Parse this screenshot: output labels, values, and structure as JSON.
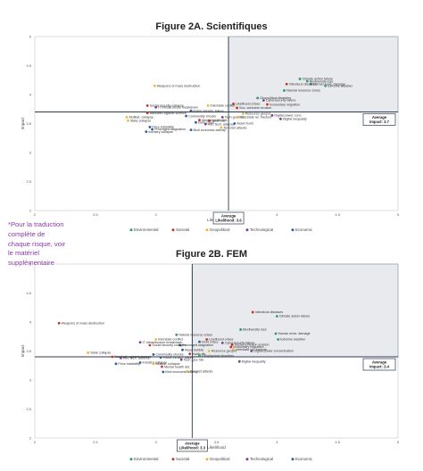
{
  "side_note": "*Pour la traduction complète de chaque risque, voir le matériel supplémentaire",
  "colors": {
    "Environmental": "#2e9a6a",
    "Societal": "#c0392b",
    "Geopolitical": "#f0b43a",
    "Technological": "#7a3f8f",
    "Economic": "#2b5fa0"
  },
  "chart_data": [
    {
      "type": "scatter",
      "title": "Figure 2A. Scientifiques",
      "xlabel": "Likelihood",
      "ylabel": "Impact",
      "xlim": [
        2,
        5
      ],
      "ylim": [
        2,
        5
      ],
      "x_ticks": [
        "2",
        "2.5",
        "3",
        "3.5",
        "4",
        "4.5",
        "5"
      ],
      "y_ticks": [
        "2",
        "2.5",
        "3",
        "3.5",
        "4",
        "4.5",
        "5"
      ],
      "grid": false,
      "legend_position": "bottom",
      "legend": [
        "Environmental",
        "Societal",
        "Geopolitical",
        "Technological",
        "Economic"
      ],
      "average": {
        "likelihood": 3.6,
        "impact": 3.7,
        "likelihood_label": "Average\nLikelihood: 3.6",
        "impact_label": "Average\nImpact: 3.7"
      },
      "points": [
        {
          "label": "Climate action failure",
          "x": 4.19,
          "y": 4.27,
          "category": "Environmental"
        },
        {
          "label": "Biodiversity loss",
          "x": 4.25,
          "y": 4.23,
          "category": "Environmental"
        },
        {
          "label": "Human envir. damage",
          "x": 4.28,
          "y": 4.18,
          "category": "Environmental"
        },
        {
          "label": "Extreme weather",
          "x": 4.4,
          "y": 4.15,
          "category": "Environmental"
        },
        {
          "label": "Infectious diseases",
          "x": 4.08,
          "y": 4.18,
          "category": "Societal"
        },
        {
          "label": "Natural resource crises",
          "x": 4.06,
          "y": 4.07,
          "category": "Environmental"
        },
        {
          "label": "Geopolitical disasters",
          "x": 3.84,
          "y": 3.94,
          "category": "Environmental"
        },
        {
          "label": "Cybersecurity failure",
          "x": 3.89,
          "y": 3.9,
          "category": "Technological"
        },
        {
          "label": "Involuntary migration",
          "x": 3.92,
          "y": 3.83,
          "category": "Societal"
        },
        {
          "label": "Likelihood crises",
          "x": 3.64,
          "y": 3.84,
          "category": "Societal"
        },
        {
          "label": "Soc. cohesion erosion",
          "x": 3.67,
          "y": 3.77,
          "category": "Societal"
        },
        {
          "label": "Interstate conflict",
          "x": 3.43,
          "y": 3.81,
          "category": "Geopolitical"
        },
        {
          "label": "Weapons of mass destruction",
          "x": 2.99,
          "y": 4.15,
          "category": "Geopolitical"
        },
        {
          "label": "Social security collapse",
          "x": 2.93,
          "y": 3.81,
          "category": "Societal"
        },
        {
          "label": "IT infrastructure breakdown",
          "x": 3.0,
          "y": 3.78,
          "category": "Technological"
        },
        {
          "label": "Backlash against science",
          "x": 2.93,
          "y": 3.68,
          "category": "Societal"
        },
        {
          "label": "Public infrastr. failure",
          "x": 3.29,
          "y": 3.72,
          "category": "Economic"
        },
        {
          "label": "Commodity shocks",
          "x": 3.25,
          "y": 3.63,
          "category": "Economic"
        },
        {
          "label": "Resource geopol.",
          "x": 3.72,
          "y": 3.67,
          "category": "Geopolitical"
        },
        {
          "label": "Tech gov. fail.",
          "x": 3.55,
          "y": 3.61,
          "category": "Technological"
        },
        {
          "label": "Interstate rel. fracture",
          "x": 3.68,
          "y": 3.61,
          "category": "Geopolitical"
        },
        {
          "label": "Digital power conc.",
          "x": 3.96,
          "y": 3.64,
          "category": "Technological"
        },
        {
          "label": "Digital inequality",
          "x": 4.03,
          "y": 3.58,
          "category": "Technological"
        },
        {
          "label": "Multilat. collapse",
          "x": 2.76,
          "y": 3.61,
          "category": "Geopolitical"
        },
        {
          "label": "State collapse",
          "x": 2.77,
          "y": 3.55,
          "category": "Geopolitical"
        },
        {
          "label": "Mental health det.",
          "x": 3.36,
          "y": 3.56,
          "category": "Societal"
        },
        {
          "label": "Youth dis.",
          "x": 3.44,
          "y": 3.55,
          "category": "Societal"
        },
        {
          "label": "Debt crises",
          "x": 3.33,
          "y": 3.52,
          "category": "Economic"
        },
        {
          "label": "Adv. tech. adverse",
          "x": 3.41,
          "y": 3.49,
          "category": "Technological"
        },
        {
          "label": "Asset burst",
          "x": 3.65,
          "y": 3.5,
          "category": "Economic"
        },
        {
          "label": "Terrorist attacks",
          "x": 3.54,
          "y": 3.43,
          "category": "Geopolitical"
        },
        {
          "label": "Price instability",
          "x": 2.95,
          "y": 3.44,
          "category": "Economic"
        },
        {
          "label": "Prolonged stagnation",
          "x": 2.97,
          "y": 3.4,
          "category": "Economic"
        },
        {
          "label": "Industry collapse",
          "x": 2.92,
          "y": 3.36,
          "category": "Economic"
        },
        {
          "label": "Illicit economic activity",
          "x": 3.29,
          "y": 3.39,
          "category": "Economic"
        }
      ]
    },
    {
      "type": "scatter",
      "title": "Figure 2B. FEM",
      "xlabel": "Likelihood",
      "ylabel": "Impact",
      "xlim": [
        2,
        5
      ],
      "ylim": [
        2,
        5
      ],
      "x_ticks": [
        "2",
        "2.5",
        "3",
        "3.5",
        "4",
        "4.5",
        "5"
      ],
      "y_ticks": [
        "2",
        "2.5",
        "3",
        "3.5",
        "4",
        "4.5",
        "5"
      ],
      "grid": false,
      "legend_position": "bottom",
      "legend": [
        "Environmental",
        "Societal",
        "Geopolitical",
        "Technological",
        "Economic"
      ],
      "average": {
        "likelihood": 3.3,
        "impact": 3.4,
        "likelihood_label": "Average\nLikelihood: 3.3",
        "impact_label": "Average\nImpact: 3.4"
      },
      "points": [
        {
          "label": "Infectious diseases",
          "x": 3.8,
          "y": 4.17,
          "category": "Societal"
        },
        {
          "label": "Climate action failure",
          "x": 4.0,
          "y": 4.1,
          "category": "Environmental"
        },
        {
          "label": "Weapons of mass destruction",
          "x": 2.2,
          "y": 3.98,
          "category": "Societal"
        },
        {
          "label": "Biodiversity loss",
          "x": 3.7,
          "y": 3.87,
          "category": "Environmental"
        },
        {
          "label": "Human envir. damage",
          "x": 3.99,
          "y": 3.8,
          "category": "Environmental"
        },
        {
          "label": "Natural resource crises",
          "x": 3.17,
          "y": 3.78,
          "category": "Environmental"
        },
        {
          "label": "Extreme weather",
          "x": 4.01,
          "y": 3.7,
          "category": "Environmental"
        },
        {
          "label": "Livelihood crises",
          "x": 3.42,
          "y": 3.7,
          "category": "Societal"
        },
        {
          "label": "Interstate conflict",
          "x": 3.0,
          "y": 3.7,
          "category": "Geopolitical"
        },
        {
          "label": "Cybersecurity failure",
          "x": 3.55,
          "y": 3.64,
          "category": "Technological"
        },
        {
          "label": "IT infrastructure breakdown",
          "x": 2.87,
          "y": 3.65,
          "category": "Technological"
        },
        {
          "label": "Debt crises",
          "x": 3.36,
          "y": 3.66,
          "category": "Economic"
        },
        {
          "label": "Social cohesion erosion",
          "x": 3.63,
          "y": 3.61,
          "category": "Societal"
        },
        {
          "label": "Prolonged stagnation",
          "x": 3.2,
          "y": 3.6,
          "category": "Economic"
        },
        {
          "label": "Social security collapse",
          "x": 2.95,
          "y": 3.6,
          "category": "Societal"
        },
        {
          "label": "Involuntary migration",
          "x": 3.62,
          "y": 3.57,
          "category": "Societal"
        },
        {
          "label": "Interstate rel. fracture",
          "x": 3.64,
          "y": 3.53,
          "category": "Geopolitical"
        },
        {
          "label": "Asset bubble",
          "x": 3.22,
          "y": 3.52,
          "category": "Economic"
        },
        {
          "label": "Resource geopol.",
          "x": 3.44,
          "y": 3.5,
          "category": "Geopolitical"
        },
        {
          "label": "Digital power concentration",
          "x": 3.79,
          "y": 3.5,
          "category": "Technological"
        },
        {
          "label": "State collapse",
          "x": 2.44,
          "y": 3.47,
          "category": "Geopolitical"
        },
        {
          "label": "Commodity shocks",
          "x": 2.98,
          "y": 3.44,
          "category": "Economic"
        },
        {
          "label": "Youth dis.",
          "x": 3.28,
          "y": 3.45,
          "category": "Societal"
        },
        {
          "label": "Backlash against science",
          "x": 2.64,
          "y": 3.4,
          "category": "Societal"
        },
        {
          "label": "Public infrastr. failure",
          "x": 3.04,
          "y": 3.39,
          "category": "Economic"
        },
        {
          "label": "Geophysical disasters",
          "x": 3.36,
          "y": 3.42,
          "category": "Environmental"
        },
        {
          "label": "Adv. tech. adverse",
          "x": 2.71,
          "y": 3.38,
          "category": "Technological"
        },
        {
          "label": "Tech. gov. fail.",
          "x": 3.21,
          "y": 3.35,
          "category": "Technological"
        },
        {
          "label": "Digital inequality",
          "x": 3.69,
          "y": 3.32,
          "category": "Technological"
        },
        {
          "label": "Price instability",
          "x": 2.67,
          "y": 3.28,
          "category": "Economic"
        },
        {
          "label": "Industry collapse",
          "x": 2.87,
          "y": 3.3,
          "category": "Economic"
        },
        {
          "label": "Multilat. collapse",
          "x": 2.98,
          "y": 3.28,
          "category": "Geopolitical"
        },
        {
          "label": "Mental health det.",
          "x": 3.05,
          "y": 3.23,
          "category": "Societal"
        },
        {
          "label": "Illicit economic activity",
          "x": 3.06,
          "y": 3.14,
          "category": "Economic"
        },
        {
          "label": "Terrorist attacks",
          "x": 3.26,
          "y": 3.15,
          "category": "Geopolitical"
        }
      ]
    }
  ]
}
